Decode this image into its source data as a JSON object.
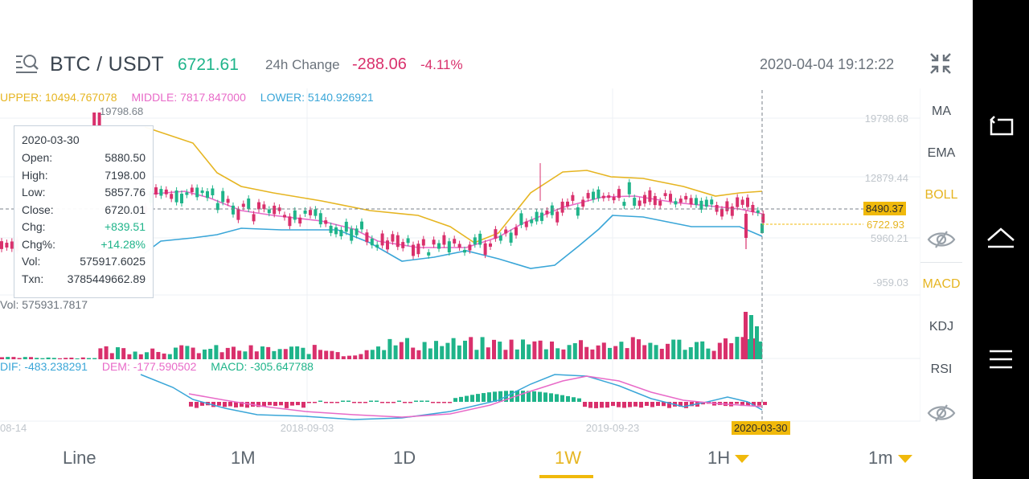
{
  "header": {
    "pair": "BTC / USDT",
    "price": "6721.61",
    "change_label": "24h Change",
    "change_value": "-288.06",
    "change_pct": "-4.11%",
    "datetime": "2020-04-04 19:12:22"
  },
  "boll_legend": {
    "upper": "UPPER: 10494.767078",
    "middle": "MIDDLE: 7817.847000",
    "lower": "LOWER: 5140.926921"
  },
  "vol_legend": "Vol: 575931.7817",
  "macd_legend": {
    "dif": "DIF: -483.238291",
    "dem": "DEM: -177.590502",
    "macd": "MACD: -305.647788"
  },
  "axis": {
    "y_labels": [
      "19798.68",
      "12879.44",
      "5960.21",
      "-959.03"
    ],
    "x_labels": [
      "08-14",
      "2018-09-03",
      "2019-09-23"
    ],
    "max_label": "19798.68"
  },
  "price_tags": {
    "crosshair": "8490.37",
    "current": "6722.93",
    "crosshair_date": "2020-03-30"
  },
  "tooltip": {
    "date": "2020-03-30",
    "rows": [
      {
        "label": "Open:",
        "value": "5880.50"
      },
      {
        "label": "High:",
        "value": "7198.00"
      },
      {
        "label": "Low:",
        "value": "5857.76"
      },
      {
        "label": "Close:",
        "value": "6720.01"
      },
      {
        "label": "Chg:",
        "value": "+839.51"
      },
      {
        "label": "Chg%:",
        "value": "+14.28%"
      },
      {
        "label": "Vol:",
        "value": "575917.6025"
      },
      {
        "label": "Txn:",
        "value": "3785449662.89"
      }
    ]
  },
  "indicators": [
    "MA",
    "EMA",
    "BOLL",
    "MACD",
    "KDJ",
    "RSI"
  ],
  "active_indicators": [
    "BOLL",
    "MACD"
  ],
  "tabs": [
    "Line",
    "1M",
    "1D",
    "1W",
    "1H",
    "1m"
  ],
  "active_tab": "1W",
  "colors": {
    "up": "#1fb48a",
    "down": "#d9306c",
    "accent": "#f0b90b",
    "upper": "#e6b521",
    "middle": "#e86ac8",
    "lower": "#3aa6d8"
  },
  "icons": [
    "search-chart-icon",
    "fullscreen-exit-icon",
    "eye-icon",
    "back-icon",
    "home-icon",
    "menu-icon"
  ]
}
